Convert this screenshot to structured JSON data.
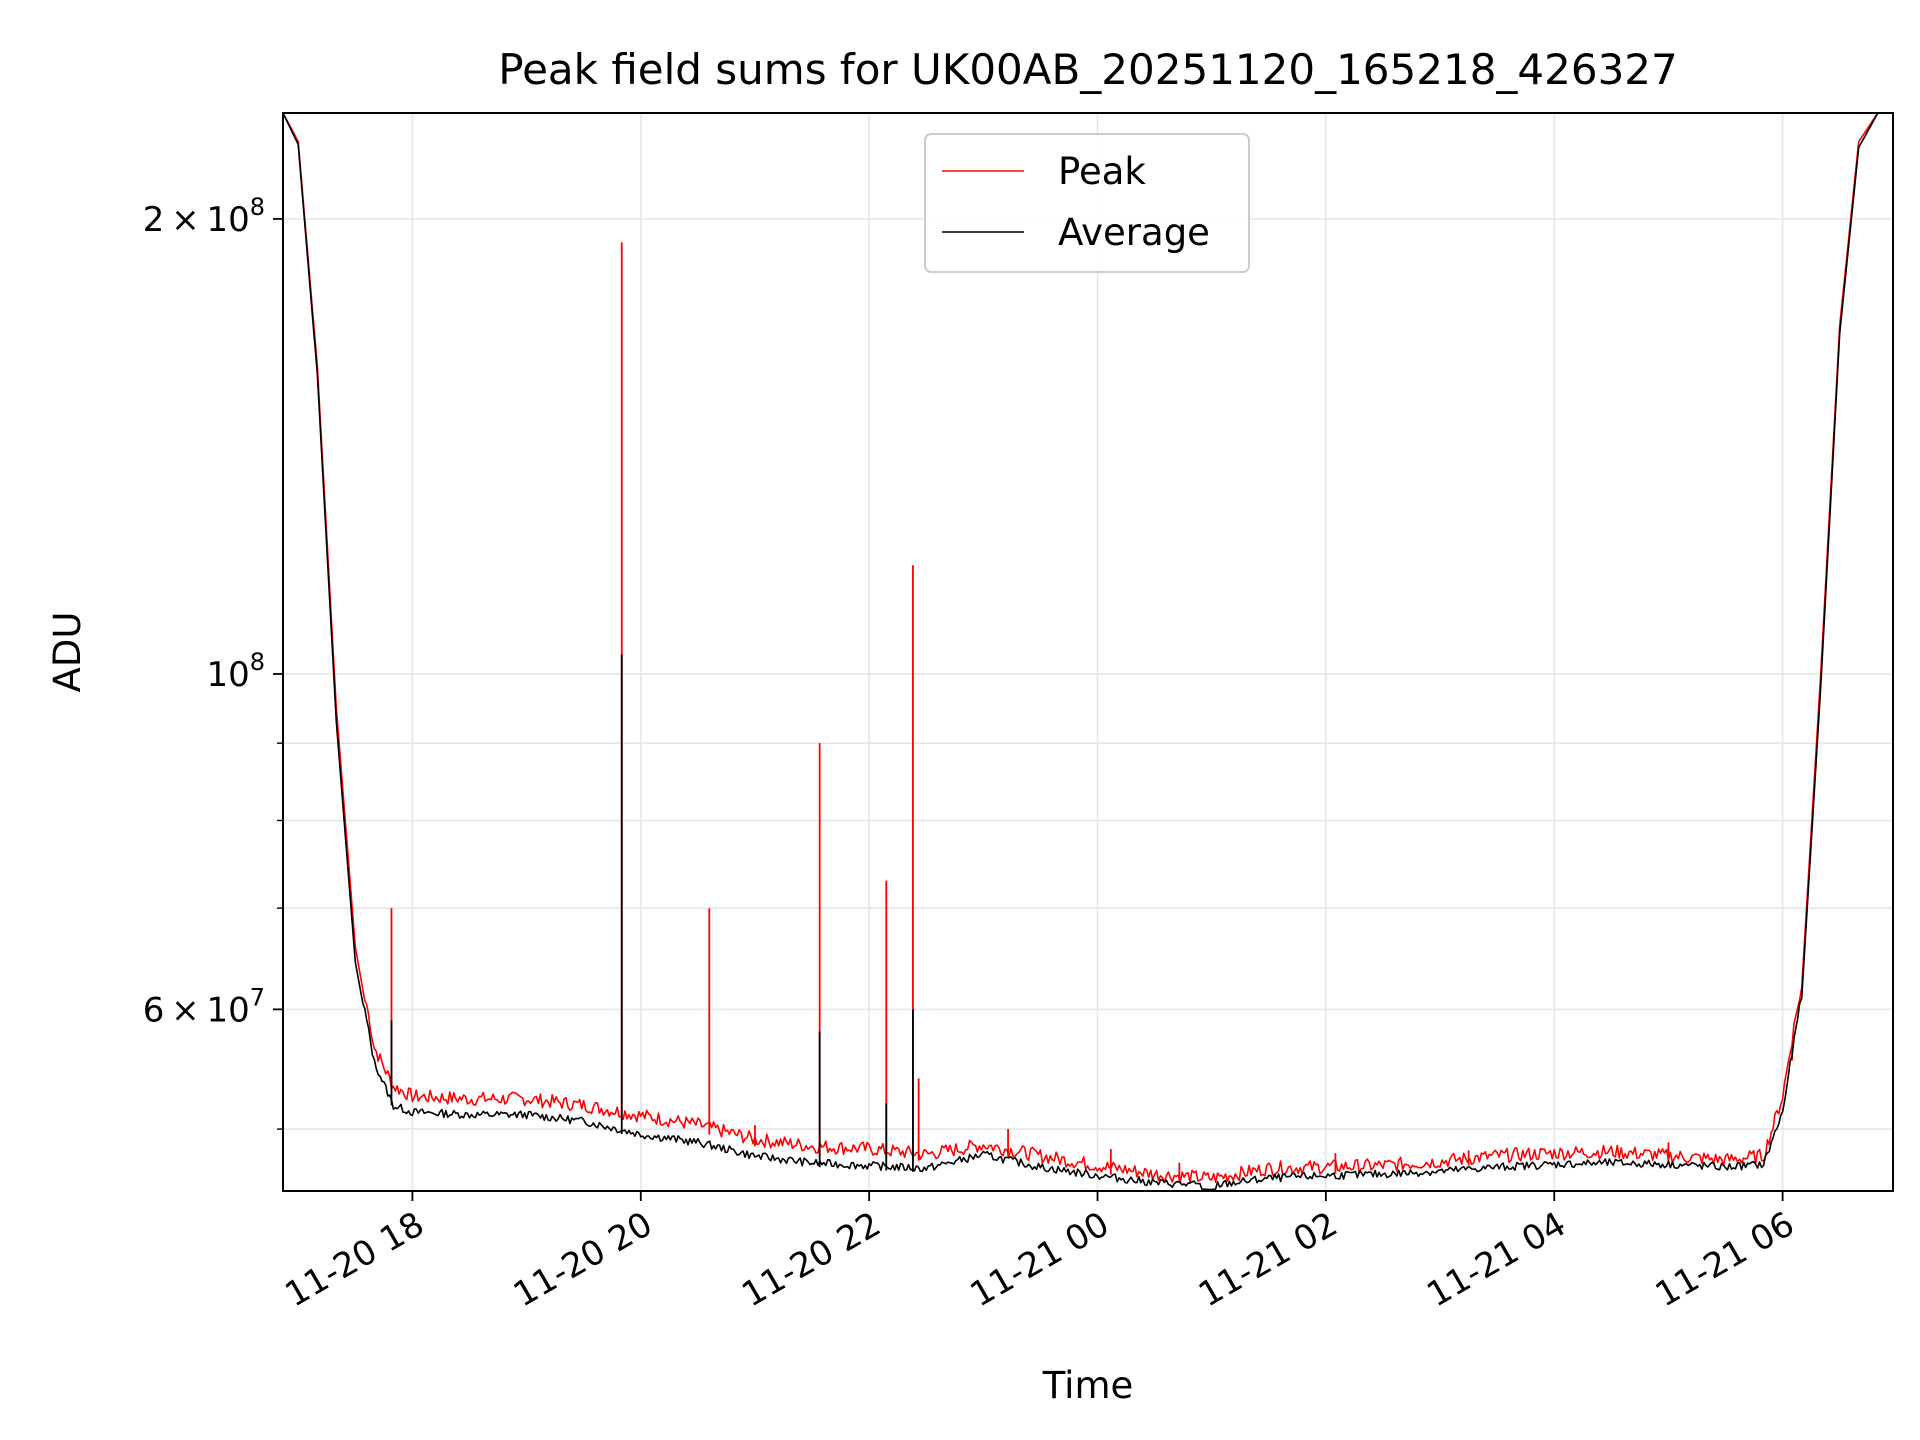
{
  "chart_data": {
    "type": "line",
    "title": "Peak field sums for UK00AB_20251120_165218_426327",
    "xlabel": "Time",
    "ylabel": "ADU",
    "y_scale": "log",
    "ylim": [
      45500000,
      235000000
    ],
    "xlim": [
      "2025-11-20T16:52",
      "2025-11-21T06:58"
    ],
    "grid": true,
    "legend_position": "top-center",
    "x_ticks": [
      {
        "value": "2025-11-20T18:00",
        "label": "11-20 18"
      },
      {
        "value": "2025-11-20T20:00",
        "label": "11-20 20"
      },
      {
        "value": "2025-11-20T22:00",
        "label": "11-20 22"
      },
      {
        "value": "2025-11-21T00:00",
        "label": "11-21 00"
      },
      {
        "value": "2025-11-21T02:00",
        "label": "11-21 02"
      },
      {
        "value": "2025-11-21T04:00",
        "label": "11-21 04"
      },
      {
        "value": "2025-11-21T06:00",
        "label": "11-21 06"
      }
    ],
    "y_major_ticks": [
      {
        "value": 200000000,
        "base": "2 × 10",
        "exp": "8"
      },
      {
        "value": 100000000,
        "base": "10",
        "exp": "8"
      },
      {
        "value": 60000000,
        "base": "6 × 10",
        "exp": "7"
      }
    ],
    "y_minor_grid": [
      50000000,
      70000000,
      80000000,
      90000000
    ],
    "series": [
      {
        "name": "Peak",
        "color": "#ff0000",
        "x": [
          "2025-11-20T16:52",
          "2025-11-20T17:00",
          "2025-11-20T17:10",
          "2025-11-20T17:20",
          "2025-11-20T17:30",
          "2025-11-20T17:40",
          "2025-11-20T17:50",
          "2025-11-20T18:00",
          "2025-11-20T18:30",
          "2025-11-20T19:00",
          "2025-11-20T19:30",
          "2025-11-20T20:00",
          "2025-11-20T20:30",
          "2025-11-20T21:00",
          "2025-11-20T21:30",
          "2025-11-20T22:00",
          "2025-11-20T22:30",
          "2025-11-20T23:00",
          "2025-11-20T23:30",
          "2025-11-21T00:00",
          "2025-11-21T00:30",
          "2025-11-21T01:00",
          "2025-11-21T01:30",
          "2025-11-21T02:00",
          "2025-11-21T02:30",
          "2025-11-21T03:00",
          "2025-11-21T03:30",
          "2025-11-21T04:00",
          "2025-11-21T04:30",
          "2025-11-21T05:00",
          "2025-11-21T05:30",
          "2025-11-21T05:50",
          "2025-11-21T06:00",
          "2025-11-21T06:10",
          "2025-11-21T06:20",
          "2025-11-21T06:30",
          "2025-11-21T06:40",
          "2025-11-21T06:50",
          "2025-11-21T06:58"
        ],
        "y": [
          235000000,
          225000000,
          160000000,
          95000000,
          66000000,
          56000000,
          52800000,
          52000000,
          51800000,
          51800000,
          51300000,
          50500000,
          49800000,
          48700000,
          48200000,
          48000000,
          47600000,
          48300000,
          47500000,
          46800000,
          46200000,
          45900000,
          46600000,
          46700000,
          46800000,
          47100000,
          47500000,
          47700000,
          47800000,
          47500000,
          47200000,
          47500000,
          52000000,
          62000000,
          100000000,
          170000000,
          225000000,
          235000000,
          235000000
        ]
      },
      {
        "name": "Average",
        "color": "#000000",
        "x": [
          "2025-11-20T16:52",
          "2025-11-20T17:00",
          "2025-11-20T17:10",
          "2025-11-20T17:20",
          "2025-11-20T17:30",
          "2025-11-20T17:40",
          "2025-11-20T17:50",
          "2025-11-20T18:00",
          "2025-11-20T18:30",
          "2025-11-20T19:00",
          "2025-11-20T19:30",
          "2025-11-20T20:00",
          "2025-11-20T20:30",
          "2025-11-20T21:00",
          "2025-11-20T21:30",
          "2025-11-20T22:00",
          "2025-11-20T22:30",
          "2025-11-20T23:00",
          "2025-11-20T23:30",
          "2025-11-21T00:00",
          "2025-11-21T00:30",
          "2025-11-21T01:00",
          "2025-11-21T01:30",
          "2025-11-21T02:00",
          "2025-11-21T02:30",
          "2025-11-21T03:00",
          "2025-11-21T03:30",
          "2025-11-21T04:00",
          "2025-11-21T04:30",
          "2025-11-21T05:00",
          "2025-11-21T05:30",
          "2025-11-21T05:50",
          "2025-11-21T06:00",
          "2025-11-21T06:10",
          "2025-11-21T06:20",
          "2025-11-21T06:30",
          "2025-11-21T06:40",
          "2025-11-21T06:50",
          "2025-11-21T06:58"
        ],
        "y": [
          235000000,
          224000000,
          158000000,
          93000000,
          64500000,
          55000000,
          51500000,
          51000000,
          50800000,
          50800000,
          50300000,
          49300000,
          48700000,
          47700000,
          47200000,
          47000000,
          46800000,
          47800000,
          46900000,
          46300000,
          45800000,
          45600000,
          46100000,
          46300000,
          46400000,
          46600000,
          46900000,
          47100000,
          47200000,
          47100000,
          46900000,
          47100000,
          51000000,
          61000000,
          98000000,
          168000000,
          223000000,
          235000000,
          235000000
        ]
      }
    ],
    "peak_spikes": [
      {
        "x": "2025-11-20T17:49",
        "y": 70000000
      },
      {
        "x": "2025-11-20T19:50",
        "y": 193000000
      },
      {
        "x": "2025-11-20T20:36",
        "y": 70000000
      },
      {
        "x": "2025-11-20T21:34",
        "y": 90000000
      },
      {
        "x": "2025-11-20T22:09",
        "y": 73000000
      },
      {
        "x": "2025-11-20T22:23",
        "y": 118000000
      },
      {
        "x": "2025-11-20T22:26",
        "y": 54000000
      },
      {
        "x": "2025-11-20T21:00",
        "y": 50300000
      },
      {
        "x": "2025-11-20T23:13",
        "y": 50000000
      },
      {
        "x": "2025-11-21T00:07",
        "y": 48500000
      },
      {
        "x": "2025-11-21T00:43",
        "y": 47500000
      },
      {
        "x": "2025-11-21T02:05",
        "y": 48200000
      },
      {
        "x": "2025-11-21T03:15",
        "y": 48400000
      },
      {
        "x": "2025-11-21T05:00",
        "y": 49000000
      },
      {
        "x": "2025-11-21T06:05",
        "y": 55500000
      }
    ],
    "average_spikes": [
      {
        "x": "2025-11-20T17:49",
        "y": 59000000
      },
      {
        "x": "2025-11-20T19:50",
        "y": 103000000
      },
      {
        "x": "2025-11-20T21:34",
        "y": 58000000
      },
      {
        "x": "2025-11-20T22:09",
        "y": 52000000
      },
      {
        "x": "2025-11-20T22:23",
        "y": 60000000
      }
    ]
  }
}
